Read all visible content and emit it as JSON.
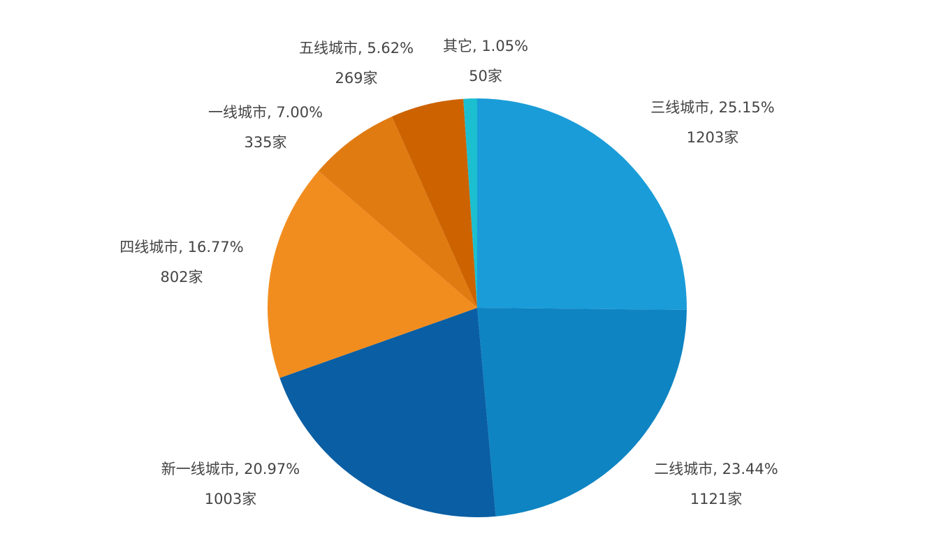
{
  "chart_data": {
    "type": "pie",
    "categories": [
      "三线城市",
      "二线城市",
      "新一线城市",
      "四线城市",
      "一线城市",
      "五线城市",
      "其它"
    ],
    "values": [
      25.15,
      23.44,
      20.97,
      16.77,
      7.0,
      5.62,
      1.05
    ],
    "value_labels": [
      "25.15%",
      "23.44%",
      "20.97%",
      "16.77%",
      "7.00%",
      "5.62%",
      "1.05%"
    ],
    "counts": [
      1203,
      1121,
      1003,
      802,
      335,
      269,
      50
    ],
    "count_labels": [
      "1203家",
      "1121家",
      "1003家",
      "802家",
      "335家",
      "269家",
      "50家"
    ],
    "colors": [
      "#1a9cd8",
      "#0e84c2",
      "#0a5ea3",
      "#f18d1f",
      "#e07b12",
      "#cc6300",
      "#1bbfd0"
    ]
  }
}
